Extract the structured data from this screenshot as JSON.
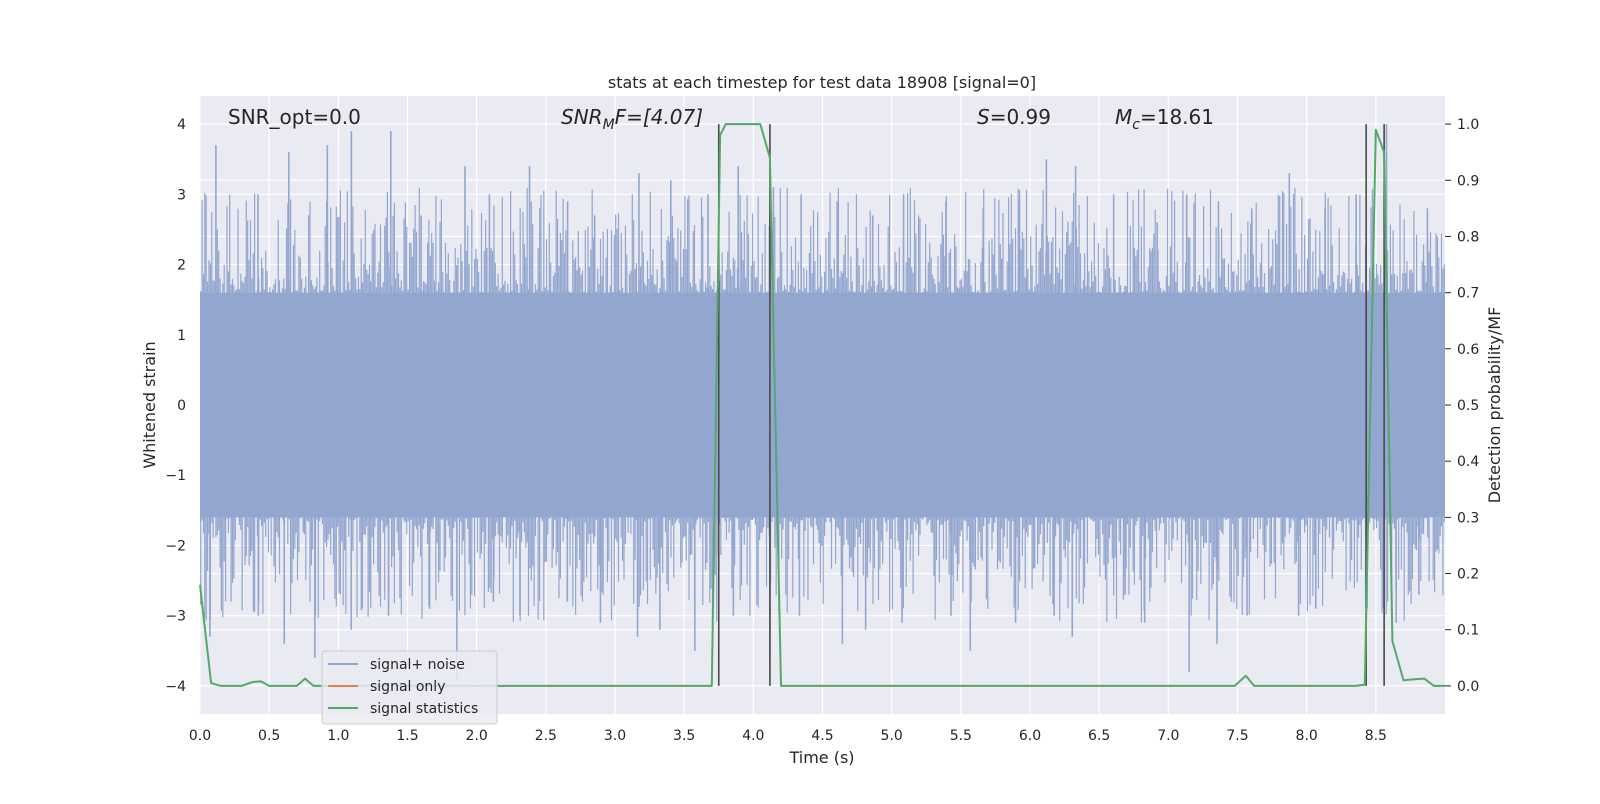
{
  "chart_data": {
    "type": "line",
    "title": "stats at each timestep for test data 18908 [signal=0]",
    "xlabel": "Time (s)",
    "ylabel_left": "Whitened strain",
    "ylabel_right": "Detection probability/MF",
    "xlim": [
      0.0,
      9.0
    ],
    "ylim_left": [
      -4.4,
      4.4
    ],
    "ylim_right": [
      -0.05,
      1.05
    ],
    "x_ticks": [
      "0.0",
      "0.5",
      "1.0",
      "1.5",
      "2.0",
      "2.5",
      "3.0",
      "3.5",
      "4.0",
      "4.5",
      "5.0",
      "5.5",
      "6.0",
      "6.5",
      "7.0",
      "7.5",
      "8.0",
      "8.5"
    ],
    "y_ticks_left": [
      "−4",
      "−3",
      "−2",
      "−1",
      "0",
      "1",
      "2",
      "3",
      "4"
    ],
    "y_ticks_right": [
      "0.0",
      "0.1",
      "0.2",
      "0.3",
      "0.4",
      "0.5",
      "0.6",
      "0.7",
      "0.8",
      "0.9",
      "1.0"
    ],
    "grid": true,
    "legend_location": "lower-left",
    "annotations": {
      "snr_opt": "SNR_opt=0.0",
      "snr_mf_main": "SNR",
      "snr_mf_sub": "M",
      "snr_mf_rest": "F=[4.07]",
      "s_main": "S",
      "s_rest": "=0.99",
      "mc_main": "M",
      "mc_sub": "c",
      "mc_rest": "=18.61"
    },
    "series": [
      {
        "name": "signal+ noise",
        "color": "#92a6cf",
        "style": "dense noise band",
        "core_band": [
          -1.6,
          1.6
        ],
        "spike_max": [
          3.7,
          3.0,
          3.6,
          3.7,
          3.9,
          3.9,
          2.7,
          3.4,
          3.0,
          3.4,
          2.9,
          2.7,
          3.3,
          3.2,
          3.0,
          3.4,
          3.1,
          3.0,
          2.9,
          2.7,
          3.0,
          2.9,
          2.8,
          2.9,
          3.5,
          3.4,
          3.0,
          2.6,
          3.0,
          2.9,
          2.8,
          3.3,
          2.8,
          3.0,
          4.0,
          2.8
        ],
        "spike_min": [
          -3.3,
          -3.0,
          -3.4,
          -3.6,
          -3.2,
          -3.0,
          -2.9,
          -3.9,
          -2.8,
          -3.0,
          -2.8,
          -3.1,
          -3.3,
          -3.2,
          -3.5,
          -3.0,
          -3.6,
          -3.0,
          -3.4,
          -3.2,
          -3.1,
          -3.0,
          -3.5,
          -3.1,
          -3.0,
          -3.3,
          -2.7,
          -3.1,
          -3.8,
          -3.4,
          -3.0,
          -3.0,
          -2.9,
          -2.9,
          -3.1,
          -2.7
        ]
      },
      {
        "name": "signal only",
        "color": "#dd8452",
        "values": []
      },
      {
        "name": "signal statistics",
        "color": "#55a868",
        "x": [
          0.0,
          0.08,
          0.15,
          0.3,
          0.38,
          0.44,
          0.5,
          0.7,
          0.76,
          0.82,
          3.7,
          3.76,
          3.8,
          3.86,
          3.95,
          4.05,
          4.12,
          4.2,
          7.48,
          7.56,
          7.62,
          8.35,
          8.42,
          8.5,
          8.56,
          8.62,
          8.7,
          8.78,
          8.85,
          8.92,
          9.0
        ],
        "y": [
          0.18,
          0.005,
          0.0,
          0.0,
          0.007,
          0.008,
          0.0,
          0.0,
          0.013,
          0.0,
          0.0,
          0.98,
          1.0,
          1.0,
          1.0,
          1.0,
          0.94,
          0.0,
          0.0,
          0.018,
          0.0,
          0.0,
          0.002,
          0.99,
          0.95,
          0.08,
          0.01,
          0.012,
          0.013,
          0.0,
          0.0
        ]
      }
    ],
    "vertical_markers_x": [
      3.75,
      4.12,
      8.43,
      8.56
    ]
  }
}
